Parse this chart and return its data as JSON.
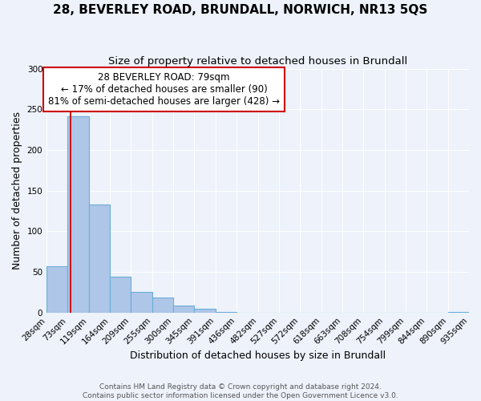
{
  "title": "28, BEVERLEY ROAD, BRUNDALL, NORWICH, NR13 5QS",
  "subtitle": "Size of property relative to detached houses in Brundall",
  "xlabel": "Distribution of detached houses by size in Brundall",
  "ylabel": "Number of detached properties",
  "bin_edges": [
    28,
    73,
    119,
    164,
    209,
    255,
    300,
    345,
    391,
    436,
    482,
    527,
    572,
    618,
    663,
    708,
    754,
    799,
    844,
    890,
    935
  ],
  "bin_labels": [
    "28sqm",
    "73sqm",
    "119sqm",
    "164sqm",
    "209sqm",
    "255sqm",
    "300sqm",
    "345sqm",
    "391sqm",
    "436sqm",
    "482sqm",
    "527sqm",
    "572sqm",
    "618sqm",
    "663sqm",
    "708sqm",
    "754sqm",
    "799sqm",
    "844sqm",
    "890sqm",
    "935sqm"
  ],
  "counts": [
    57,
    241,
    133,
    44,
    25,
    18,
    9,
    5,
    1,
    0,
    0,
    0,
    0,
    0,
    0,
    0,
    0,
    0,
    0,
    1
  ],
  "bar_color": "#aec6e8",
  "bar_edge_color": "#6aaed6",
  "vline_color": "#cc0000",
  "vline_x": 79,
  "annotation_title": "28 BEVERLEY ROAD: 79sqm",
  "annotation_line1": "← 17% of detached houses are smaller (90)",
  "annotation_line2": "81% of semi-detached houses are larger (428) →",
  "annotation_box_facecolor": "#ffffff",
  "annotation_box_edgecolor": "#cc0000",
  "ylim": [
    0,
    300
  ],
  "yticks": [
    0,
    50,
    100,
    150,
    200,
    250,
    300
  ],
  "footer1": "Contains HM Land Registry data © Crown copyright and database right 2024.",
  "footer2": "Contains public sector information licensed under the Open Government Licence v3.0.",
  "bg_color": "#edf2fb",
  "plot_bg_color": "#edf2fb",
  "grid_color": "#ffffff",
  "title_fontsize": 11,
  "subtitle_fontsize": 9.5,
  "axis_label_fontsize": 9,
  "tick_fontsize": 7.5,
  "annotation_fontsize": 8.5,
  "footer_fontsize": 6.5
}
